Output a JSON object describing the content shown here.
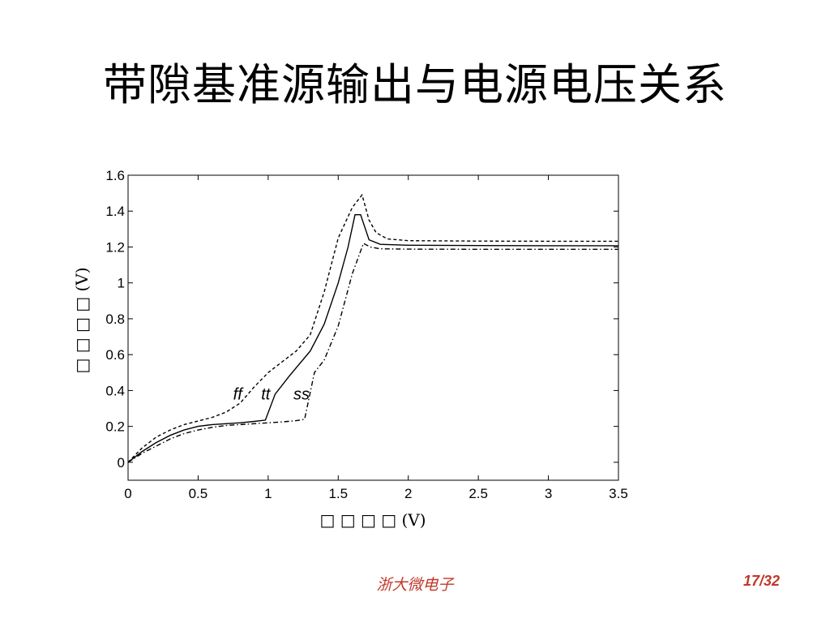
{
  "slide": {
    "title": "带隙基准源输出与电源电压关系",
    "footer_center": "浙大微电子",
    "footer_page": "17/32"
  },
  "colors": {
    "footer": "#c0392b",
    "plot_line": "#000000"
  },
  "chart_data": {
    "type": "line",
    "xlabel": "□ □ □ □ (V)",
    "ylabel": "□ □ □ □ (V)",
    "xlim": [
      0,
      3.5
    ],
    "ylim": [
      -0.1,
      1.6
    ],
    "x_ticks": [
      0,
      0.5,
      1,
      1.5,
      2,
      2.5,
      3,
      3.5
    ],
    "x_tick_labels": [
      "0",
      "0.5",
      "1",
      "1.5",
      "2",
      "2.5",
      "3",
      "3.5"
    ],
    "y_ticks": [
      0,
      0.2,
      0.4,
      0.6,
      0.8,
      1.0,
      1.2,
      1.4,
      1.6
    ],
    "y_tick_labels": [
      "0",
      "0.2",
      "0.4",
      "0.6",
      "0.8",
      "1",
      "1.2",
      "1.4",
      "1.6"
    ],
    "grid": false,
    "series": [
      {
        "name": "ff",
        "style": "dashed",
        "points": [
          [
            0,
            0
          ],
          [
            0.1,
            0.08
          ],
          [
            0.2,
            0.14
          ],
          [
            0.3,
            0.18
          ],
          [
            0.4,
            0.21
          ],
          [
            0.5,
            0.23
          ],
          [
            0.6,
            0.25
          ],
          [
            0.7,
            0.28
          ],
          [
            0.8,
            0.33
          ],
          [
            0.9,
            0.42
          ],
          [
            1.0,
            0.5
          ],
          [
            1.1,
            0.56
          ],
          [
            1.2,
            0.62
          ],
          [
            1.3,
            0.71
          ],
          [
            1.4,
            0.95
          ],
          [
            1.5,
            1.25
          ],
          [
            1.6,
            1.42
          ],
          [
            1.67,
            1.49
          ],
          [
            1.72,
            1.35
          ],
          [
            1.77,
            1.28
          ],
          [
            1.85,
            1.245
          ],
          [
            2.0,
            1.235
          ],
          [
            2.5,
            1.233
          ],
          [
            3.0,
            1.232
          ],
          [
            3.5,
            1.232
          ]
        ]
      },
      {
        "name": "tt",
        "style": "solid",
        "points": [
          [
            0,
            0
          ],
          [
            0.1,
            0.06
          ],
          [
            0.2,
            0.11
          ],
          [
            0.3,
            0.15
          ],
          [
            0.4,
            0.18
          ],
          [
            0.5,
            0.2
          ],
          [
            0.6,
            0.21
          ],
          [
            0.7,
            0.215
          ],
          [
            0.8,
            0.22
          ],
          [
            0.9,
            0.228
          ],
          [
            0.98,
            0.235
          ],
          [
            1.05,
            0.38
          ],
          [
            1.15,
            0.48
          ],
          [
            1.3,
            0.62
          ],
          [
            1.4,
            0.77
          ],
          [
            1.5,
            1.0
          ],
          [
            1.57,
            1.2
          ],
          [
            1.62,
            1.38
          ],
          [
            1.66,
            1.38
          ],
          [
            1.72,
            1.24
          ],
          [
            1.8,
            1.215
          ],
          [
            2.0,
            1.21
          ],
          [
            2.5,
            1.208
          ],
          [
            3.0,
            1.207
          ],
          [
            3.5,
            1.207
          ]
        ]
      },
      {
        "name": "ss",
        "style": "dashdot",
        "points": [
          [
            0,
            0
          ],
          [
            0.1,
            0.05
          ],
          [
            0.2,
            0.09
          ],
          [
            0.3,
            0.13
          ],
          [
            0.4,
            0.16
          ],
          [
            0.5,
            0.18
          ],
          [
            0.6,
            0.195
          ],
          [
            0.7,
            0.205
          ],
          [
            0.8,
            0.21
          ],
          [
            0.9,
            0.215
          ],
          [
            1.0,
            0.22
          ],
          [
            1.1,
            0.225
          ],
          [
            1.2,
            0.232
          ],
          [
            1.26,
            0.24
          ],
          [
            1.33,
            0.5
          ],
          [
            1.4,
            0.57
          ],
          [
            1.5,
            0.76
          ],
          [
            1.6,
            1.05
          ],
          [
            1.68,
            1.22
          ],
          [
            1.73,
            1.2
          ],
          [
            1.8,
            1.19
          ],
          [
            2.0,
            1.188
          ],
          [
            2.5,
            1.187
          ],
          [
            3.0,
            1.187
          ],
          [
            3.5,
            1.187
          ]
        ]
      }
    ],
    "annotations": [
      {
        "text": "ff",
        "x": 0.75,
        "y": 0.35
      },
      {
        "text": "tt",
        "x": 0.95,
        "y": 0.35
      },
      {
        "text": "ss",
        "x": 1.18,
        "y": 0.35
      }
    ]
  }
}
